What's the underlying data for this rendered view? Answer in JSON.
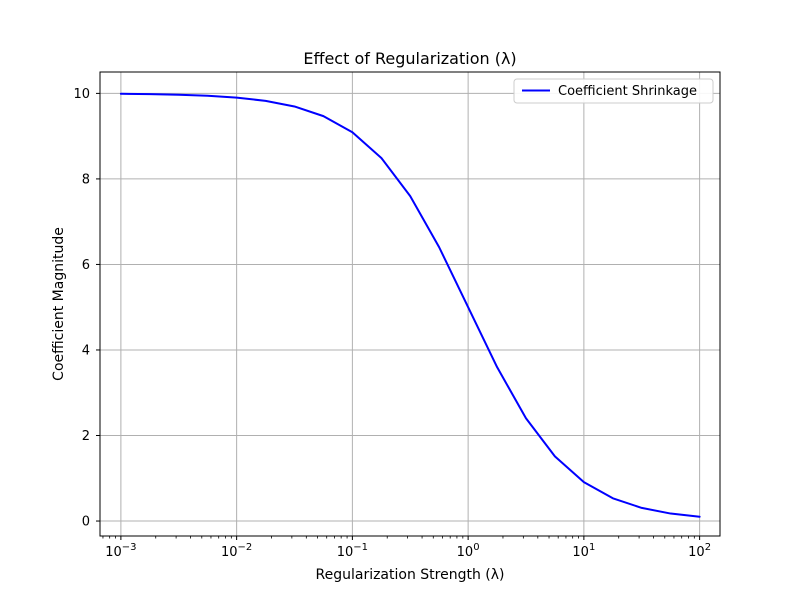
{
  "chart_data": {
    "type": "line",
    "title": "Effect of Regularization (λ)",
    "xlabel": "Regularization Strength (λ)",
    "ylabel": "Coefficient Magnitude",
    "x_scale": "log",
    "xlim": [
      0.00066,
      150
    ],
    "ylim": [
      -0.35,
      10.5
    ],
    "grid": true,
    "legend_position": "top-right",
    "x_ticks": [
      {
        "value": 0.001,
        "base": "10",
        "exp": "−3"
      },
      {
        "value": 0.01,
        "base": "10",
        "exp": "−2"
      },
      {
        "value": 0.1,
        "base": "10",
        "exp": "−1"
      },
      {
        "value": 1,
        "base": "10",
        "exp": "0"
      },
      {
        "value": 10,
        "base": "10",
        "exp": "1"
      },
      {
        "value": 100,
        "base": "10",
        "exp": "2"
      }
    ],
    "y_ticks": [
      0,
      2,
      4,
      6,
      8,
      10
    ],
    "series": [
      {
        "name": "Coefficient Shrinkage",
        "color": "#0000ff",
        "x": [
          0.001,
          0.00178,
          0.00316,
          0.00562,
          0.01,
          0.0178,
          0.0316,
          0.0562,
          0.1,
          0.178,
          0.316,
          0.562,
          1,
          1.78,
          3.16,
          5.62,
          10,
          17.8,
          31.6,
          56.2,
          100
        ],
        "y": [
          9.99,
          9.982,
          9.968,
          9.944,
          9.901,
          9.825,
          9.694,
          9.468,
          9.091,
          8.489,
          7.597,
          6.402,
          5.0,
          3.598,
          2.403,
          1.511,
          0.909,
          0.532,
          0.307,
          0.175,
          0.099
        ]
      }
    ]
  }
}
